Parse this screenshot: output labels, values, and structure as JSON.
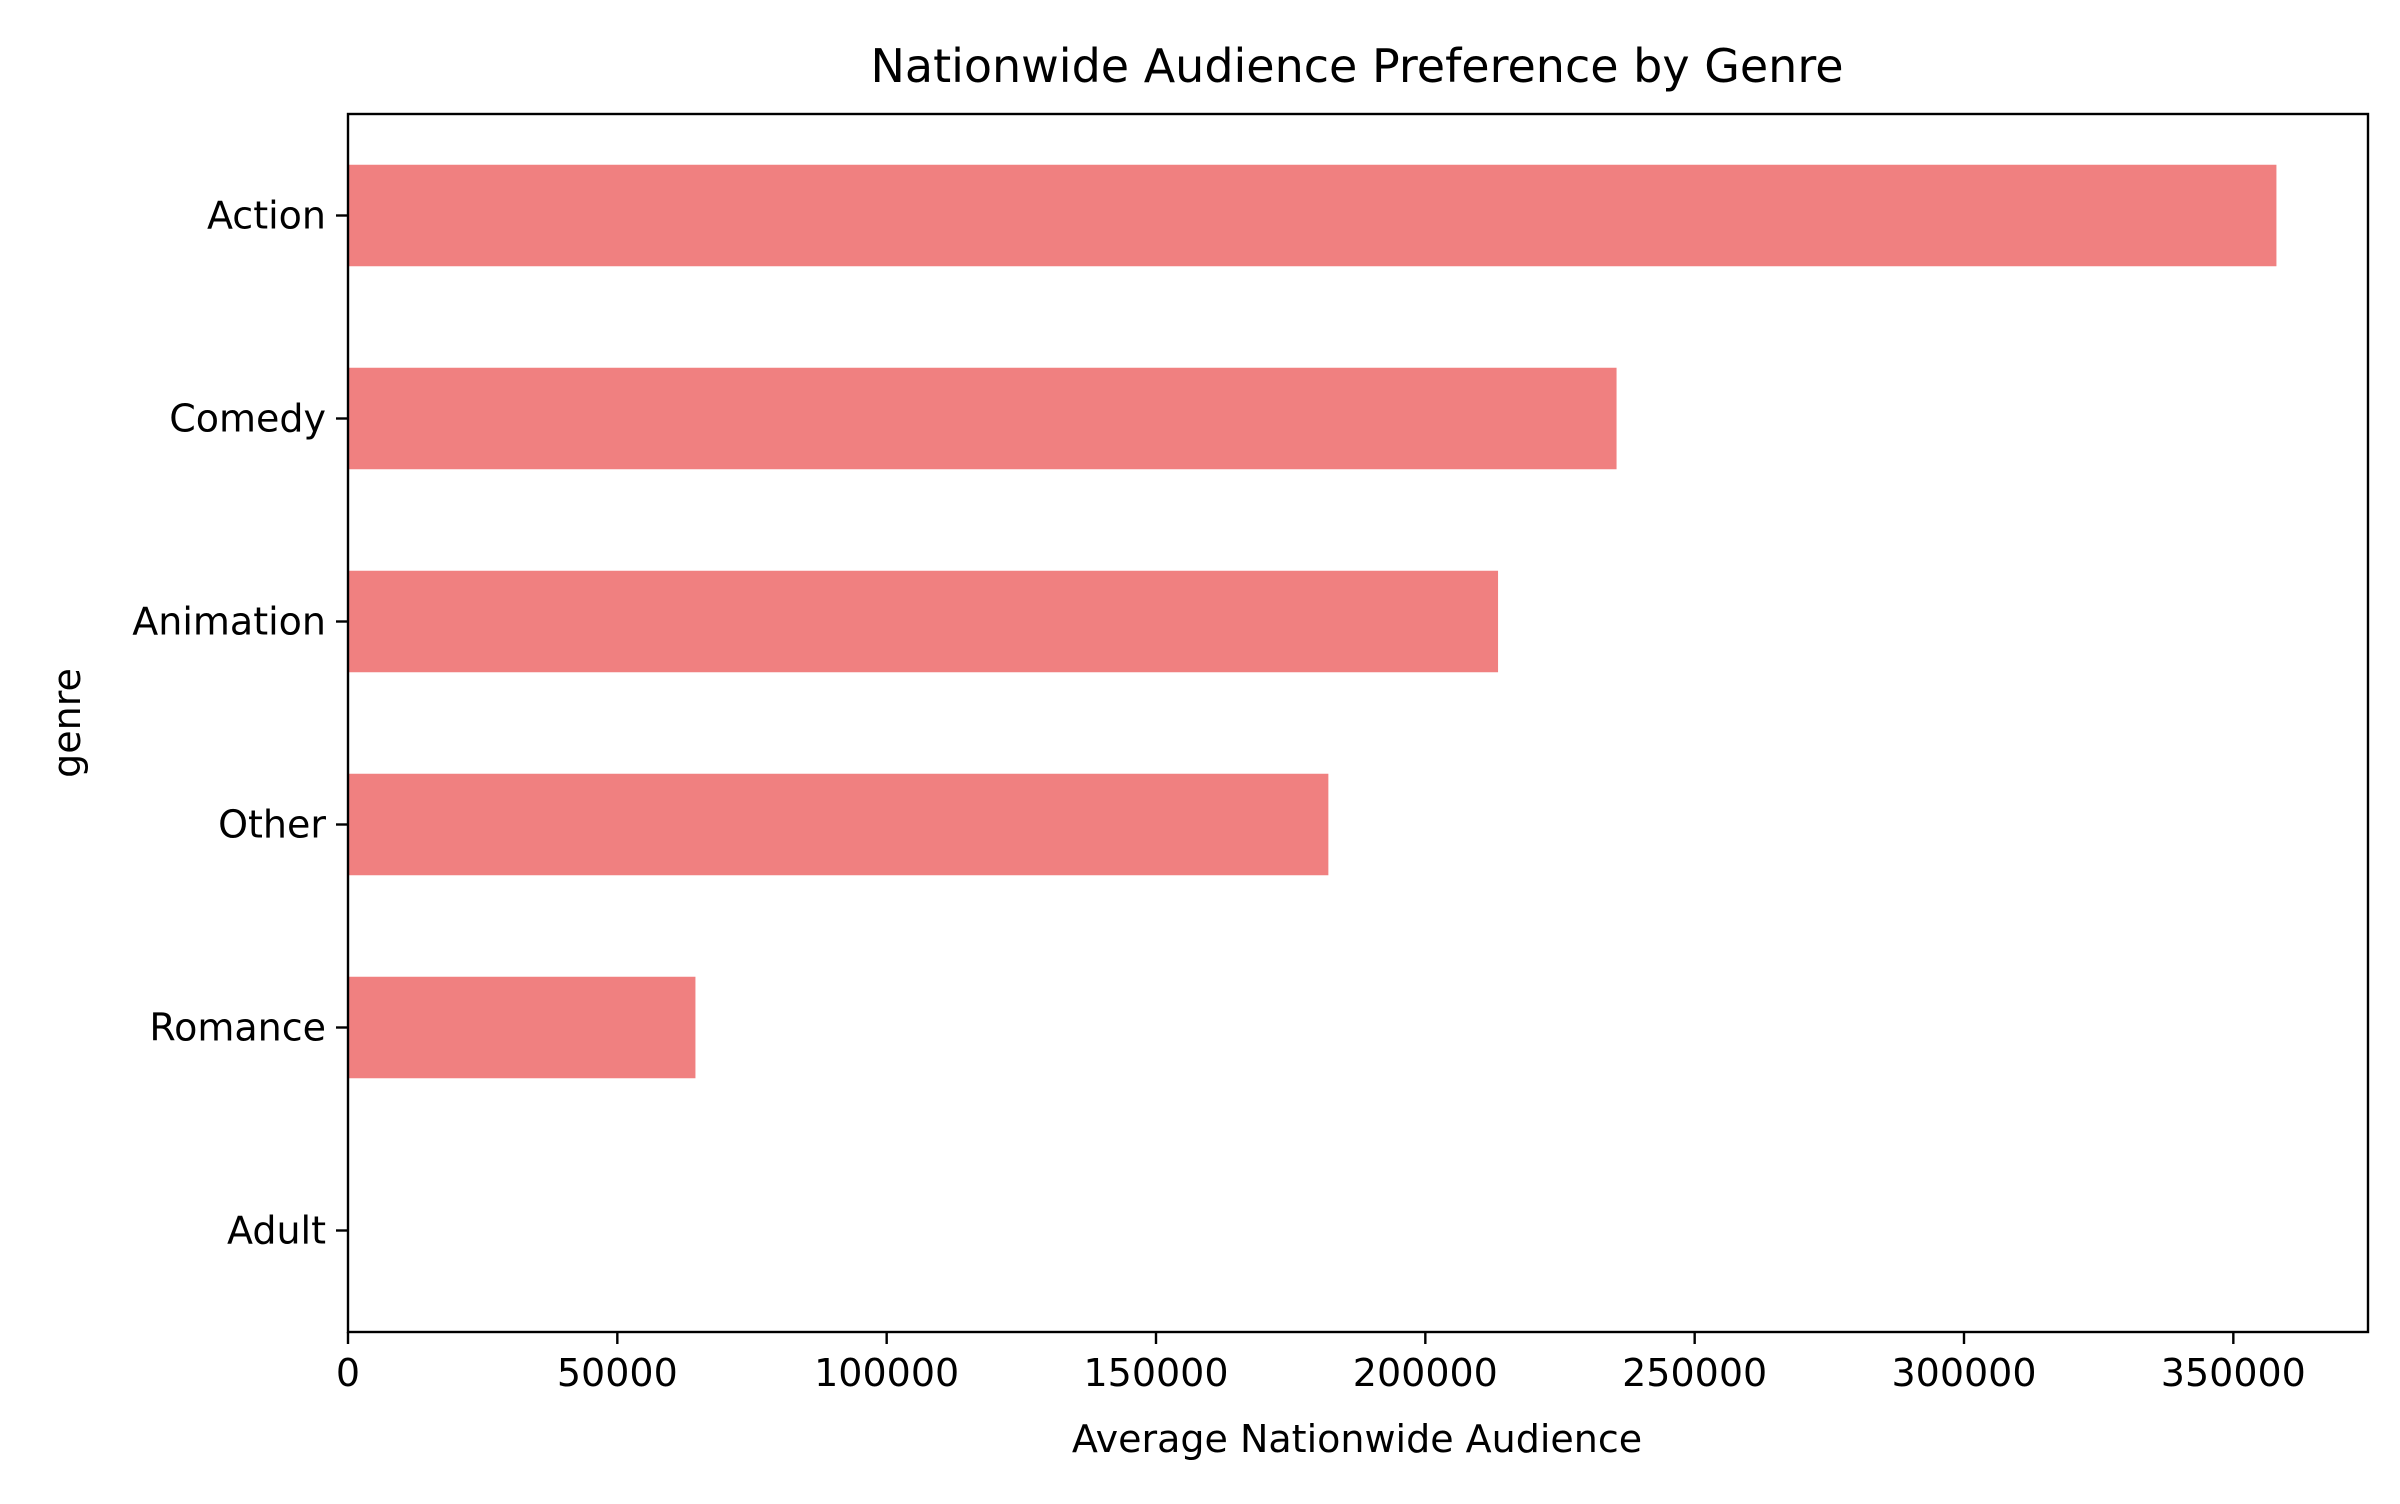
{
  "chart_data": {
    "type": "bar",
    "orientation": "horizontal",
    "title": "Nationwide Audience Preference by Genre",
    "xlabel": "Average Nationwide Audience",
    "ylabel": "genre",
    "categories": [
      "Action",
      "Comedy",
      "Animation",
      "Other",
      "Romance",
      "Adult"
    ],
    "values": [
      358000,
      235500,
      213500,
      182000,
      64500,
      0
    ],
    "xlim": [
      0,
      375000
    ],
    "xticks": [
      0,
      50000,
      100000,
      150000,
      200000,
      250000,
      300000,
      350000
    ],
    "xtick_labels": [
      "0",
      "50000",
      "100000",
      "150000",
      "200000",
      "250000",
      "300000",
      "350000"
    ],
    "grid": false,
    "legend": "none",
    "colors": {
      "bar": "#f08080",
      "axis": "#000000",
      "background": "#ffffff"
    }
  }
}
